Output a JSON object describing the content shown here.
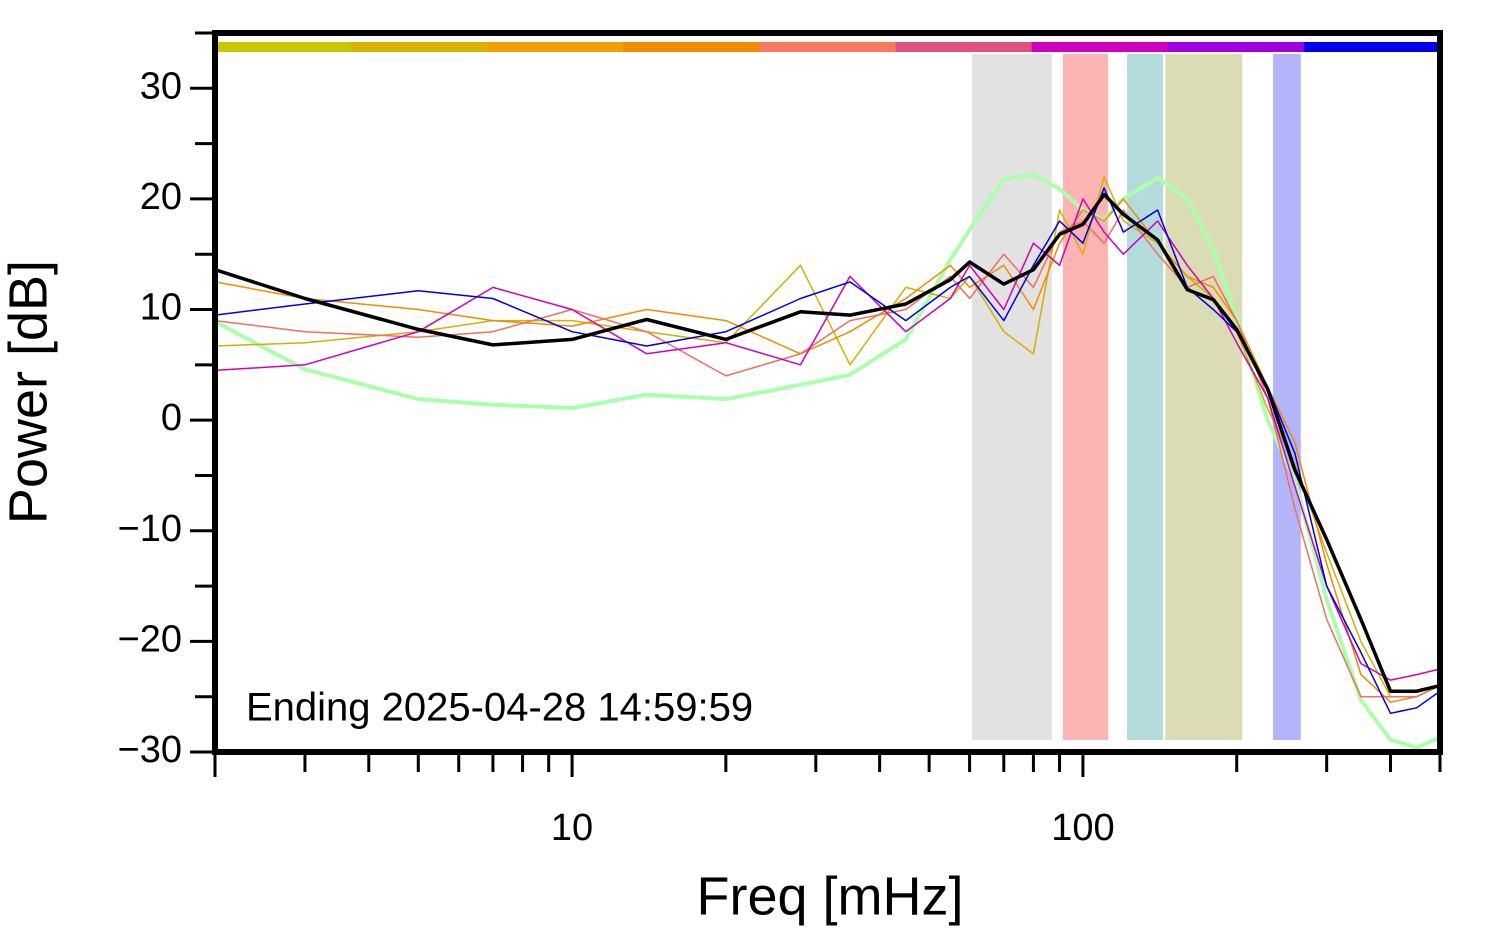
{
  "chart_data": {
    "type": "line",
    "xlabel": "Freq [mHz]",
    "ylabel": "Power [dB]",
    "annotation": "Ending 2025-04-28 14:59:59",
    "xscale": "log",
    "xlim": [
      2,
      500
    ],
    "xticks": [
      10,
      100
    ],
    "xminorticks": [
      3,
      4,
      5,
      6,
      7,
      8,
      9,
      20,
      30,
      40,
      50,
      60,
      70,
      80,
      90,
      200,
      300,
      400
    ],
    "ylim": [
      -30,
      35
    ],
    "yticks": [
      {
        "value": -30,
        "label": "−30"
      },
      {
        "value": -20,
        "label": "−20"
      },
      {
        "value": -10,
        "label": "−10"
      },
      0,
      10,
      20,
      30
    ],
    "yminorticks": [
      -25,
      -15,
      -5,
      5,
      15,
      25,
      35
    ],
    "band_colors": [
      "#c8c800",
      "#d8b400",
      "#f0a000",
      "#f08c00",
      "#f87860",
      "#e05080",
      "#d000c0",
      "#a000e0",
      "#0000f0"
    ],
    "spans": [
      {
        "x": [
          60.7,
          86.9
        ],
        "color": "#e2e2e2"
      },
      {
        "x": [
          91.4,
          112
        ],
        "color": "#ffb4b4"
      },
      {
        "x": [
          122,
          143.5
        ],
        "color": "#b4dcdc"
      },
      {
        "x": [
          145,
          205
        ],
        "color": "#dcdcb4"
      },
      {
        "x": [
          235.6,
          267
        ],
        "color": "#b4b4fa"
      }
    ],
    "x": [
      2,
      3,
      5,
      7,
      10,
      14,
      20,
      28,
      35,
      45,
      55,
      60,
      70,
      80,
      90,
      100,
      110,
      120,
      140,
      160,
      180,
      200,
      230,
      260,
      300,
      350,
      400,
      450,
      500
    ],
    "series": [
      {
        "color": "#aaffaa",
        "width": 4,
        "values": [
          8.9,
          4.6,
          1.9,
          1.4,
          1.1,
          2.3,
          1.9,
          3.2,
          4.1,
          7.3,
          14.5,
          17.2,
          21.8,
          22.2,
          20.9,
          19.0,
          18.1,
          20,
          21.9,
          20,
          15.4,
          9.1,
          0.0,
          -5.4,
          -16.2,
          -25.3,
          -28.9,
          -29.6,
          -28.7
        ]
      },
      {
        "color": "#d4b000",
        "width": 1.5,
        "values": [
          6.7,
          7,
          8,
          9,
          9,
          8,
          7,
          14,
          5,
          12,
          11,
          13,
          8,
          6,
          19,
          15,
          22,
          18,
          16,
          13,
          11,
          8,
          1,
          -4,
          -12,
          -20,
          -25,
          -25,
          -24
        ]
      },
      {
        "color": "#f08c00",
        "width": 1.5,
        "values": [
          12.5,
          11,
          10,
          9,
          8.5,
          10,
          9,
          6,
          8,
          11,
          14,
          12,
          14,
          10,
          16,
          19,
          18,
          20,
          16,
          13,
          12,
          9,
          3,
          -2,
          -13,
          -23,
          -25.5,
          -25,
          -24
        ]
      },
      {
        "color": "#f07060",
        "width": 1.5,
        "values": [
          9,
          8,
          7.5,
          8,
          10,
          8,
          4,
          6,
          9,
          10,
          13,
          11,
          15,
          12,
          17,
          18,
          16,
          19,
          15,
          12,
          13,
          9,
          2,
          -8,
          -18,
          -25,
          -25,
          -25,
          -24
        ]
      },
      {
        "color": "#d000c0",
        "width": 1.5,
        "values": [
          4.5,
          5,
          8,
          12,
          10,
          6,
          7,
          5,
          13,
          8,
          11,
          14,
          10,
          16,
          14,
          20,
          17,
          15,
          18,
          14,
          11,
          7,
          2,
          -6,
          -15,
          -22,
          -23.5,
          -23,
          -22.5
        ]
      },
      {
        "color": "#0000e0",
        "width": 1.5,
        "values": [
          9.5,
          10.5,
          11.7,
          11,
          8,
          6.7,
          8,
          11,
          12.5,
          9,
          12,
          13,
          9,
          14,
          18,
          16,
          21,
          17,
          19,
          12,
          10,
          8,
          3,
          -3,
          -15,
          -21,
          -26.5,
          -26,
          -24.5
        ]
      },
      {
        "color": "#000000",
        "width": 3.5,
        "values": [
          13.6,
          11,
          8.2,
          6.8,
          7.3,
          9.1,
          7.3,
          9.8,
          9.5,
          10.5,
          12.7,
          14.3,
          12.3,
          13.6,
          16.8,
          17.7,
          20.4,
          18.6,
          16.3,
          11.8,
          10.9,
          8.2,
          2.8,
          -4.5,
          -10.8,
          -18,
          -24.5,
          -24.5,
          -24
        ]
      }
    ]
  }
}
